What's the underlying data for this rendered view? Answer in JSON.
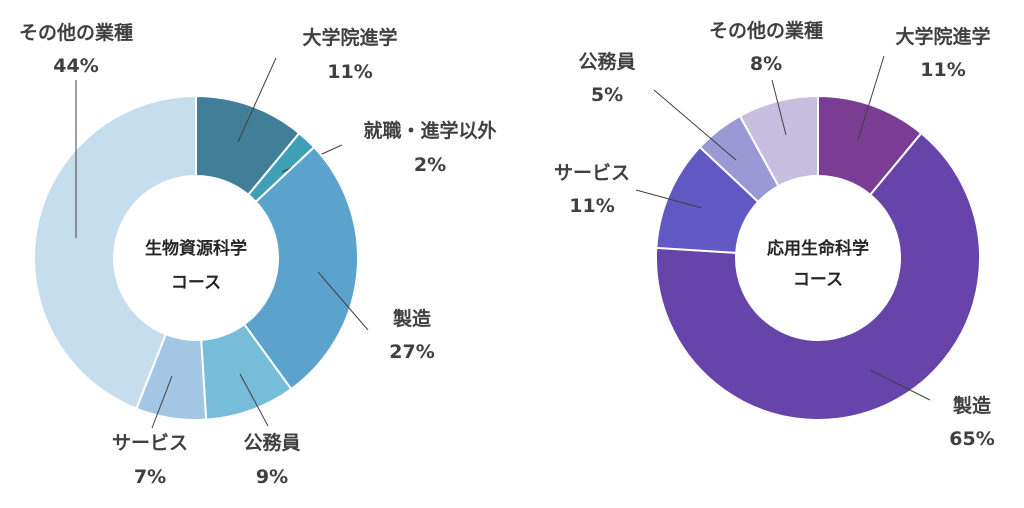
{
  "chart_data": [
    {
      "type": "pie",
      "title": "",
      "center_label": [
        "生物資源科学",
        "コース"
      ],
      "unit": "%",
      "slices": [
        {
          "label": "大学院進学",
          "value": 11,
          "color": "#417F99"
        },
        {
          "label": "就職・進学以外",
          "value": 2,
          "color": "#3FA0B5"
        },
        {
          "label": "製造",
          "value": 27,
          "color": "#5BA3CC"
        },
        {
          "label": "公務員",
          "value": 9,
          "color": "#77BDDA"
        },
        {
          "label": "サービス",
          "value": 7,
          "color": "#A3C6E4"
        },
        {
          "label": "その他の業種",
          "value": 44,
          "color": "#C5DDED"
        }
      ]
    },
    {
      "type": "pie",
      "title": "",
      "center_label": [
        "応用生命科学",
        "コース"
      ],
      "unit": "%",
      "slices": [
        {
          "label": "大学院進学",
          "value": 11,
          "color": "#7B3D94"
        },
        {
          "label": "製造",
          "value": 65,
          "color": "#6644AA"
        },
        {
          "label": "サービス",
          "value": 11,
          "color": "#6158C4"
        },
        {
          "label": "公務員",
          "value": 5,
          "color": "#9B98D6"
        },
        {
          "label": "その他の業種",
          "value": 8,
          "color": "#C8BEDF"
        }
      ]
    }
  ]
}
